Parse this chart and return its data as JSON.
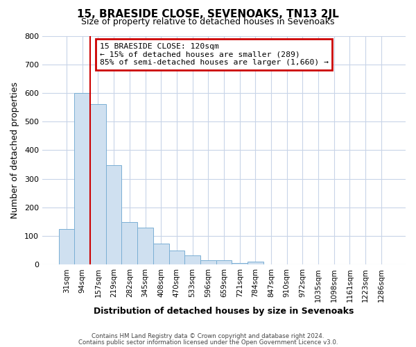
{
  "title": "15, BRAESIDE CLOSE, SEVENOAKS, TN13 2JL",
  "subtitle": "Size of property relative to detached houses in Sevenoaks",
  "xlabel": "Distribution of detached houses by size in Sevenoaks",
  "ylabel": "Number of detached properties",
  "bar_labels": [
    "31sqm",
    "94sqm",
    "157sqm",
    "219sqm",
    "282sqm",
    "345sqm",
    "408sqm",
    "470sqm",
    "533sqm",
    "596sqm",
    "659sqm",
    "721sqm",
    "784sqm",
    "847sqm",
    "910sqm",
    "972sqm",
    "1035sqm",
    "1098sqm",
    "1161sqm",
    "1223sqm",
    "1286sqm"
  ],
  "bar_values": [
    125,
    600,
    560,
    347,
    150,
    130,
    75,
    50,
    33,
    15,
    15,
    5,
    10,
    0,
    0,
    0,
    0,
    0,
    0,
    0,
    0
  ],
  "bar_color": "#cfe0f0",
  "bar_edge_color": "#7aafd4",
  "ylim": [
    0,
    800
  ],
  "yticks": [
    0,
    100,
    200,
    300,
    400,
    500,
    600,
    700,
    800
  ],
  "vline_color": "#cc0000",
  "annotation_title": "15 BRAESIDE CLOSE: 120sqm",
  "annotation_line1": "← 15% of detached houses are smaller (289)",
  "annotation_line2": "85% of semi-detached houses are larger (1,660) →",
  "annotation_box_color": "#cc0000",
  "footer1": "Contains HM Land Registry data © Crown copyright and database right 2024.",
  "footer2": "Contains public sector information licensed under the Open Government Licence v3.0.",
  "background_color": "#ffffff",
  "grid_color": "#c8d4e8",
  "title_fontsize": 11,
  "subtitle_fontsize": 9,
  "xlabel_fontsize": 9,
  "ylabel_fontsize": 9,
  "tick_fontsize": 7.5
}
